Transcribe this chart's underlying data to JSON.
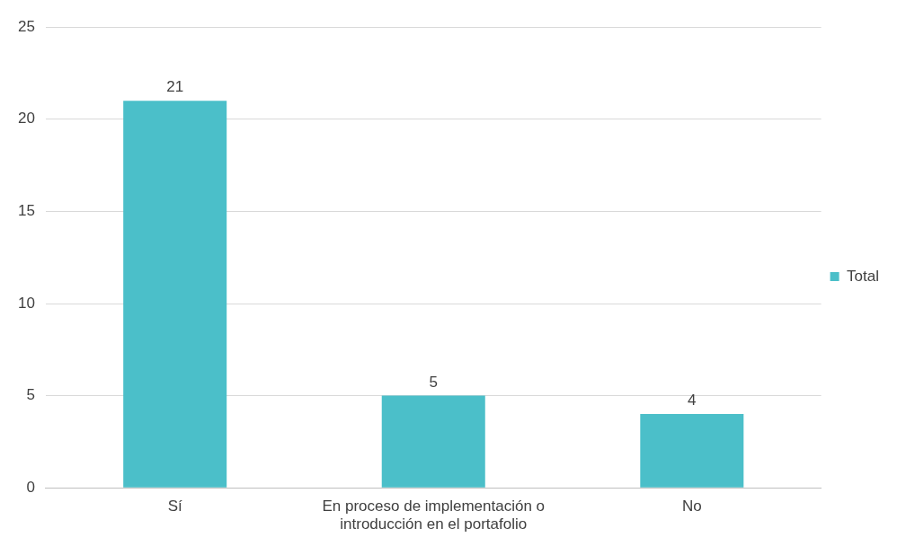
{
  "chart_data": {
    "type": "bar",
    "categories": [
      "Sí",
      "En proceso de implementación o introducción en el portafolio",
      "No"
    ],
    "series": [
      {
        "name": "Total",
        "color": "#4bbfc9",
        "values": [
          21,
          5,
          4
        ]
      }
    ],
    "ylim": [
      0,
      25
    ],
    "yticks": [
      0,
      5,
      10,
      15,
      20,
      25
    ],
    "grid": "y",
    "legend": "right",
    "data_labels": true
  }
}
